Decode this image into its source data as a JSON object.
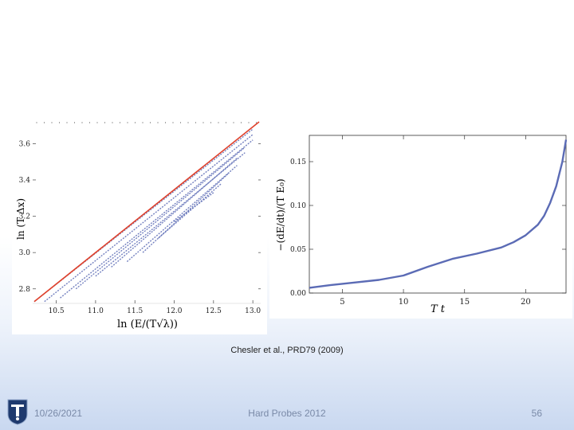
{
  "caption": "Chesler et al., PRD79 (2009)",
  "footer": {
    "date": "10/26/2021",
    "title": "Hard Probes 2012",
    "page": "56"
  },
  "colors": {
    "series_blue": "#5b6bb5",
    "line_red": "#e0402a",
    "footer_text": "#7a8aa8"
  },
  "chart_data": [
    {
      "type": "scatter",
      "xlabel": "ln (E/(T√λ))",
      "ylabel": "ln (T Δx)",
      "xlim": [
        10.2,
        13.1
      ],
      "ylim": [
        2.72,
        3.72
      ],
      "x_ticks": [
        "10.5",
        "11.0",
        "11.5",
        "12.0",
        "12.5",
        "13.0"
      ],
      "y_ticks": [
        "2.8",
        "3.0",
        "3.2",
        "3.4",
        "3.6"
      ],
      "red_line": {
        "x": [
          10.22,
          13.08
        ],
        "y": [
          2.73,
          3.72
        ]
      },
      "series": [
        {
          "x": [
            10.22,
            13.0
          ],
          "y": [
            2.73,
            3.68
          ]
        },
        {
          "x": [
            10.35,
            13.0
          ],
          "y": [
            2.73,
            3.65
          ]
        },
        {
          "x": [
            10.55,
            13.0
          ],
          "y": [
            2.75,
            3.62
          ]
        },
        {
          "x": [
            10.75,
            12.9
          ],
          "y": [
            2.8,
            3.58
          ]
        },
        {
          "x": [
            11.0,
            12.9
          ],
          "y": [
            2.87,
            3.55
          ]
        },
        {
          "x": [
            11.2,
            12.8
          ],
          "y": [
            2.92,
            3.52
          ]
        },
        {
          "x": [
            11.4,
            12.8
          ],
          "y": [
            2.95,
            3.48
          ]
        },
        {
          "x": [
            11.6,
            12.7
          ],
          "y": [
            3.0,
            3.44
          ]
        },
        {
          "x": [
            11.8,
            12.6
          ],
          "y": [
            3.08,
            3.38
          ]
        },
        {
          "x": [
            12.0,
            12.5
          ],
          "y": [
            3.17,
            3.33
          ]
        }
      ]
    },
    {
      "type": "line",
      "xlabel": "T t",
      "ylabel": "−(dE/dt)/(T E₀)",
      "xlim": [
        2.3,
        23.3
      ],
      "ylim": [
        0.0,
        0.18
      ],
      "x_ticks": [
        5,
        10,
        15,
        20
      ],
      "y_ticks": [
        "0.00",
        "0.05",
        "0.10",
        "0.15"
      ],
      "x": [
        2.3,
        4,
        6,
        8,
        10,
        12,
        14,
        16,
        18,
        19,
        20,
        21,
        21.5,
        22,
        22.5,
        23,
        23.3
      ],
      "y": [
        0.006,
        0.009,
        0.012,
        0.015,
        0.02,
        0.03,
        0.039,
        0.045,
        0.052,
        0.058,
        0.066,
        0.078,
        0.088,
        0.103,
        0.122,
        0.15,
        0.175
      ]
    }
  ]
}
